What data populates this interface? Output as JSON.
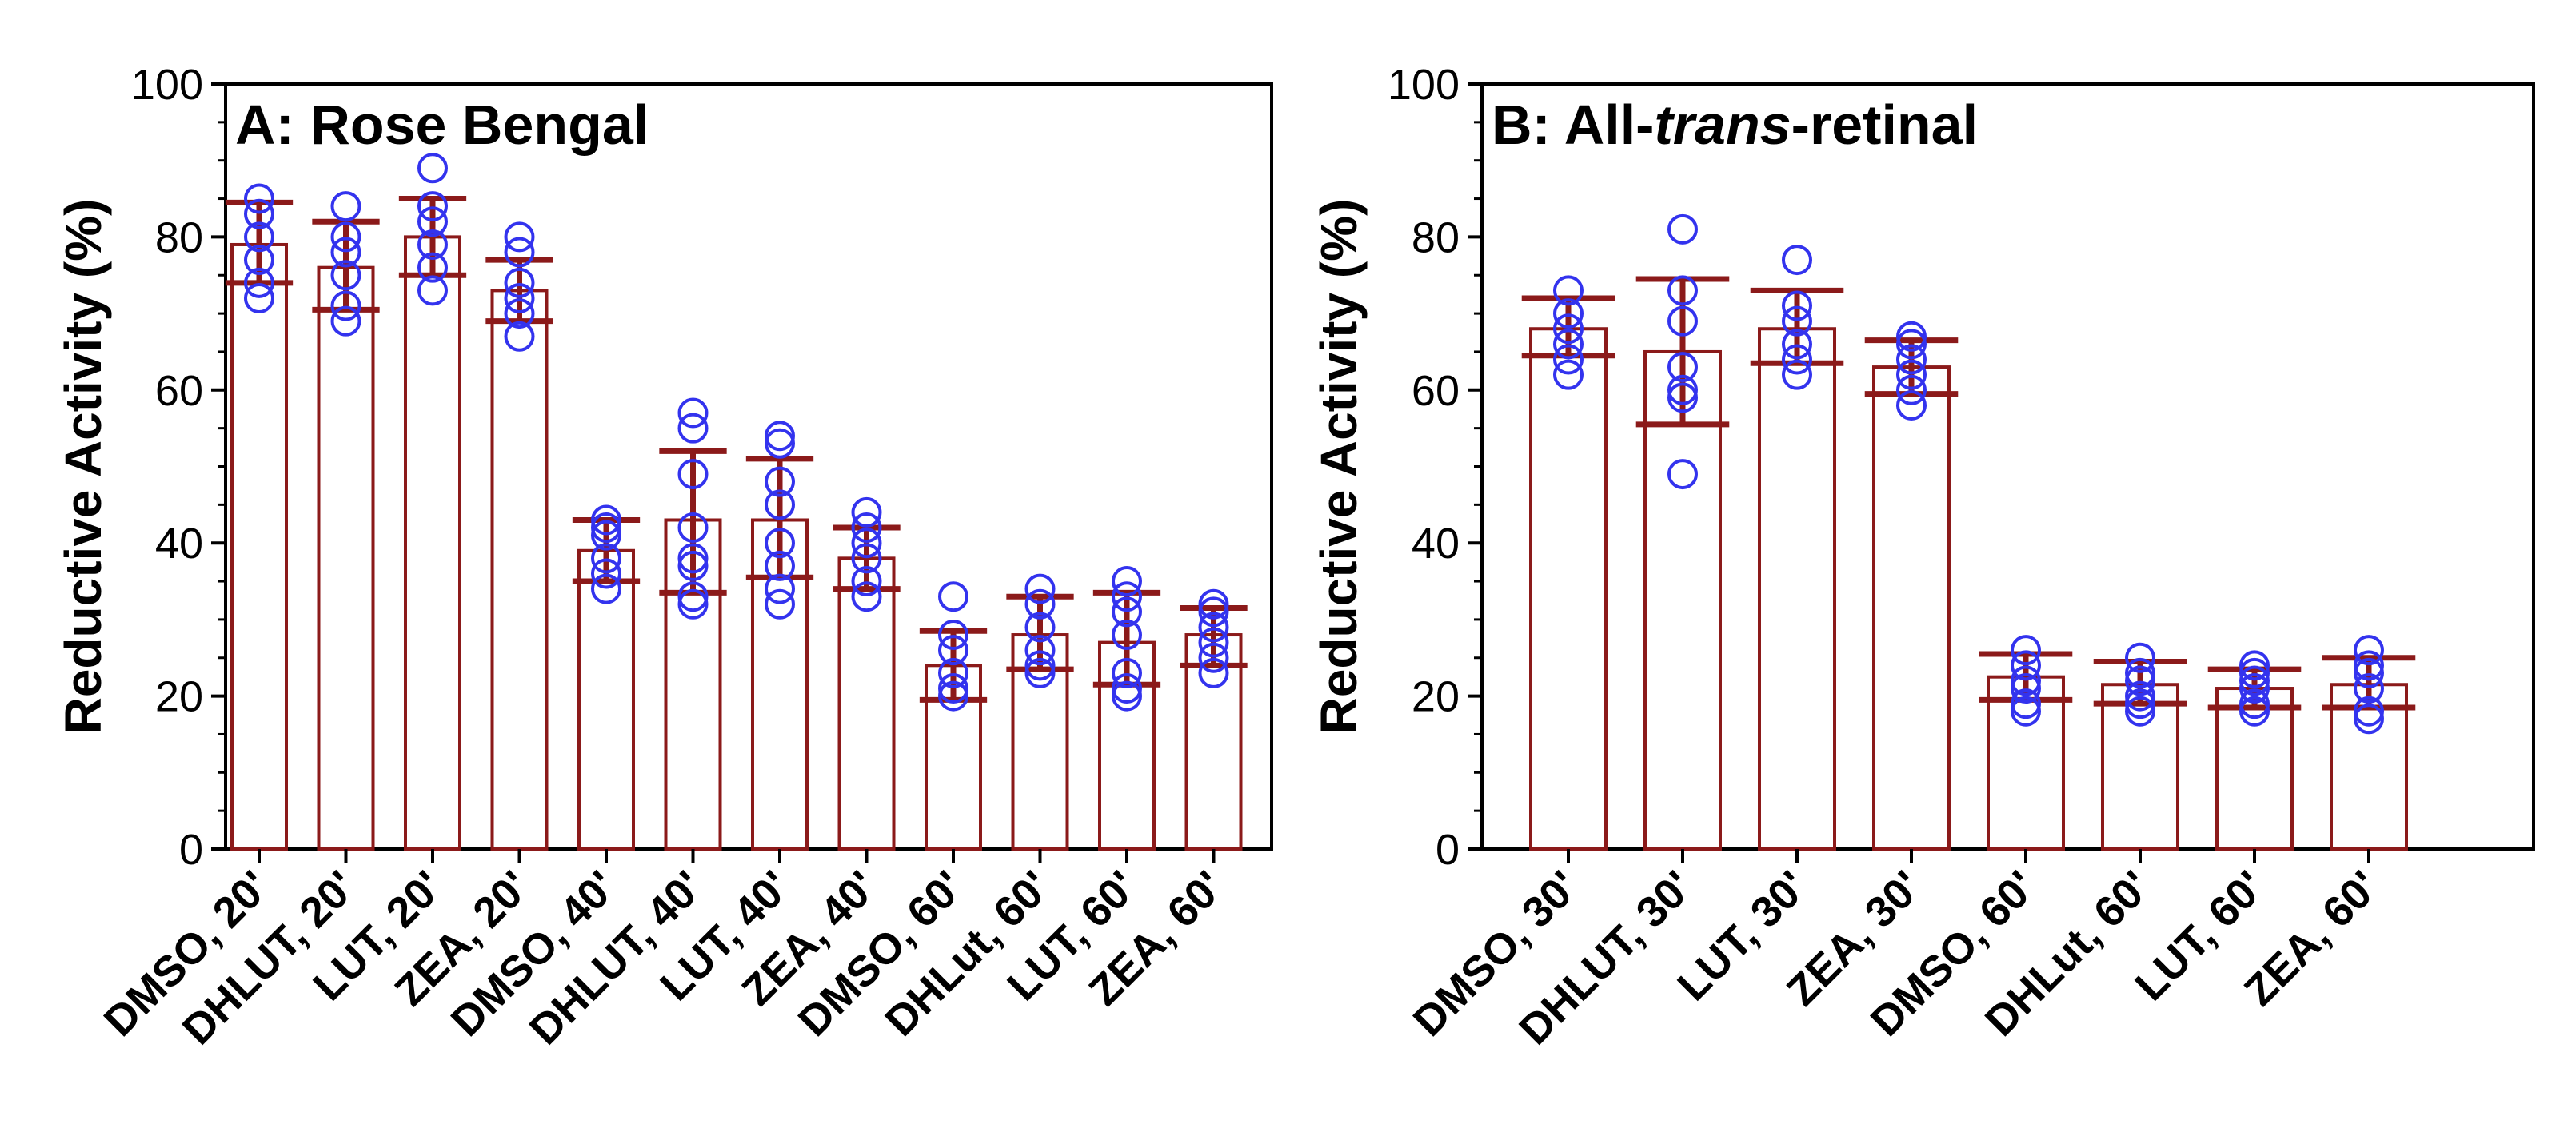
{
  "chart_data": [
    {
      "type": "bar",
      "title_prefix": "A: ",
      "title": "Rose Bengal",
      "title_italic": "",
      "title_suffix": "",
      "ylabel": "Reductive Activity (%)",
      "ylim": [
        0,
        100
      ],
      "yticks": [
        0,
        20,
        40,
        60,
        80,
        100
      ],
      "categories": [
        "DMSO, 20'",
        "DHLUT, 20'",
        "LUT, 20'",
        "ZEA, 20'",
        "DMSO, 40'",
        "DHLUT, 40'",
        "LUT, 40'",
        "ZEA, 40'",
        "DMSO, 60'",
        "DHLut, 60'",
        "LUT, 60'",
        "ZEA, 60'"
      ],
      "values": [
        79,
        76,
        80,
        73,
        39,
        43,
        43,
        38,
        24,
        28,
        27,
        28
      ],
      "error_low": [
        74,
        70.5,
        75,
        69,
        35,
        33.5,
        35.5,
        34,
        19.5,
        23.5,
        21.5,
        24
      ],
      "error_high": [
        84.5,
        82,
        85,
        77,
        43,
        52,
        51,
        42,
        28.5,
        33,
        33.5,
        31.5
      ],
      "points": [
        [
          85,
          83,
          80,
          77,
          74,
          72
        ],
        [
          84,
          80,
          78,
          75,
          71,
          69
        ],
        [
          89,
          84,
          82,
          79,
          76,
          73
        ],
        [
          80,
          78,
          74,
          72,
          70,
          67
        ],
        [
          43,
          42,
          41,
          38,
          36,
          34
        ],
        [
          57,
          55,
          49,
          42,
          38,
          37,
          33,
          32
        ],
        [
          54,
          53,
          48,
          45,
          40,
          37,
          34,
          32
        ],
        [
          44,
          42,
          40,
          38,
          35,
          33
        ],
        [
          33,
          28,
          26,
          23,
          21,
          20
        ],
        [
          34,
          32,
          29,
          26,
          24,
          23
        ],
        [
          35,
          33,
          31,
          28,
          23,
          21,
          20
        ],
        [
          32,
          31,
          29,
          27,
          25,
          23
        ]
      ]
    },
    {
      "type": "bar",
      "title_prefix": "B: All-",
      "title": "",
      "title_italic": "trans",
      "title_suffix": "-retinal",
      "ylabel": "Reductive Activity (%)",
      "ylim": [
        0,
        100
      ],
      "yticks": [
        0,
        20,
        40,
        60,
        80,
        100
      ],
      "categories": [
        "DMSO, 30'",
        "DHLUT, 30'",
        "LUT, 30'",
        "ZEA, 30'",
        "DMSO, 60'",
        "DHLut, 60'",
        "LUT, 60'",
        "ZEA, 60'"
      ],
      "values": [
        68,
        65,
        68,
        63,
        22.5,
        21.5,
        21,
        21.5
      ],
      "error_low": [
        64.5,
        55.5,
        63.5,
        59.5,
        19.5,
        19,
        18.5,
        18.5
      ],
      "error_high": [
        72,
        74.5,
        73,
        66.5,
        25.5,
        24.5,
        23.5,
        25
      ],
      "points": [
        [
          73,
          70,
          68,
          66,
          64,
          62
        ],
        [
          81,
          73,
          69,
          63,
          60,
          59,
          49
        ],
        [
          77,
          71,
          69,
          66,
          64,
          62
        ],
        [
          67,
          66,
          64,
          62,
          60,
          58
        ],
        [
          26,
          24,
          22,
          21,
          19,
          18
        ],
        [
          25,
          23,
          22,
          20,
          19,
          18
        ],
        [
          24,
          23,
          22,
          21,
          19,
          18
        ],
        [
          26,
          24,
          23,
          21,
          18,
          17
        ]
      ]
    }
  ]
}
